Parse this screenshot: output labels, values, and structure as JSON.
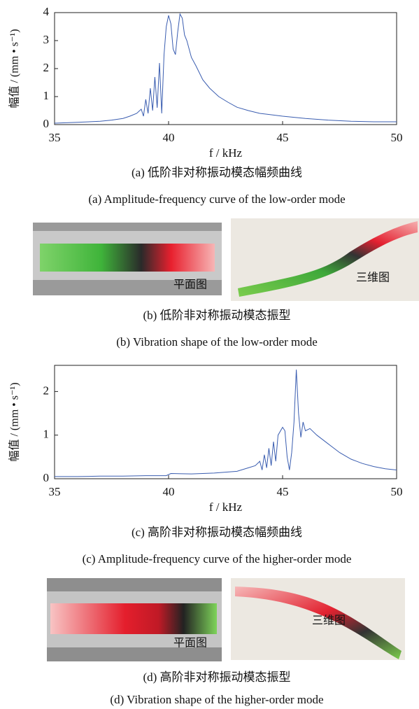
{
  "chart_data": [
    {
      "type": "line",
      "color": "#3a5db0",
      "xlabel": "f / kHz",
      "ylabel": "幅值 / (mm • s⁻¹)",
      "xlim": [
        35,
        50
      ],
      "xticks": [
        35,
        40,
        45,
        50
      ],
      "ylim": [
        0,
        4
      ],
      "yticks": [
        0,
        1,
        2,
        3,
        4
      ],
      "x": [
        35,
        36,
        37,
        37.5,
        38,
        38.3,
        38.6,
        38.8,
        38.9,
        39.0,
        39.1,
        39.2,
        39.3,
        39.4,
        39.5,
        39.6,
        39.7,
        39.8,
        39.9,
        40.0,
        40.1,
        40.2,
        40.3,
        40.4,
        40.5,
        40.6,
        40.7,
        40.8,
        41.0,
        41.2,
        41.5,
        41.8,
        42.2,
        42.6,
        43.0,
        43.5,
        44.0,
        45.0,
        46.0,
        47.0,
        48.0,
        49.0,
        50.0
      ],
      "values": [
        0.05,
        0.08,
        0.12,
        0.16,
        0.22,
        0.3,
        0.4,
        0.55,
        0.3,
        0.9,
        0.4,
        1.3,
        0.5,
        1.7,
        0.6,
        2.2,
        0.4,
        2.5,
        3.5,
        3.9,
        3.6,
        2.7,
        2.5,
        3.3,
        3.95,
        3.8,
        3.2,
        3.0,
        2.4,
        2.1,
        1.6,
        1.3,
        1.0,
        0.8,
        0.62,
        0.5,
        0.4,
        0.3,
        0.22,
        0.16,
        0.12,
        0.1,
        0.1
      ],
      "caption_cn": "(a)  低阶非对称振动模态幅频曲线",
      "caption_en": "(a)  Amplitude-frequency curve of the low-order mode"
    },
    {
      "type": "line",
      "color": "#3a5db0",
      "xlabel": "f / kHz",
      "ylabel": "幅值 / (mm • s⁻¹)",
      "xlim": [
        35,
        50
      ],
      "xticks": [
        35,
        40,
        45,
        50
      ],
      "ylim": [
        0,
        2.6
      ],
      "yticks": [
        0,
        1,
        2
      ],
      "x": [
        35,
        36,
        37,
        38,
        39,
        39.9,
        40.1,
        41,
        42,
        43,
        43.5,
        43.8,
        44.0,
        44.1,
        44.2,
        44.3,
        44.4,
        44.5,
        44.6,
        44.7,
        44.8,
        45.0,
        45.1,
        45.2,
        45.3,
        45.4,
        45.5,
        45.6,
        45.7,
        45.8,
        45.9,
        46.0,
        46.2,
        46.5,
        47.0,
        47.5,
        48.0,
        48.5,
        49.0,
        49.5,
        50.0
      ],
      "values": [
        0.05,
        0.05,
        0.06,
        0.06,
        0.07,
        0.07,
        0.12,
        0.11,
        0.13,
        0.17,
        0.25,
        0.3,
        0.4,
        0.2,
        0.55,
        0.25,
        0.7,
        0.3,
        0.85,
        0.4,
        1.0,
        1.18,
        1.1,
        0.5,
        0.2,
        0.6,
        1.3,
        2.5,
        1.5,
        0.95,
        1.3,
        1.1,
        1.15,
        1.0,
        0.8,
        0.6,
        0.45,
        0.35,
        0.28,
        0.23,
        0.2
      ],
      "caption_cn": "(c)  高阶非对称振动模态幅频曲线",
      "caption_en": "(c)  Amplitude-frequency curve of the higher-order mode"
    }
  ],
  "figures": [
    {
      "plan_label": "平面图",
      "view3d_label": "三维图",
      "caption_cn": "(b)  低阶非对称振动模态振型",
      "caption_en": "(b)  Vibration shape of the low-order mode"
    },
    {
      "plan_label": "平面图",
      "view3d_label": "三维图",
      "caption_cn": "(d)  高阶非对称振动模态振型",
      "caption_en": "(d)  Vibration shape of the higher-order mode"
    }
  ]
}
